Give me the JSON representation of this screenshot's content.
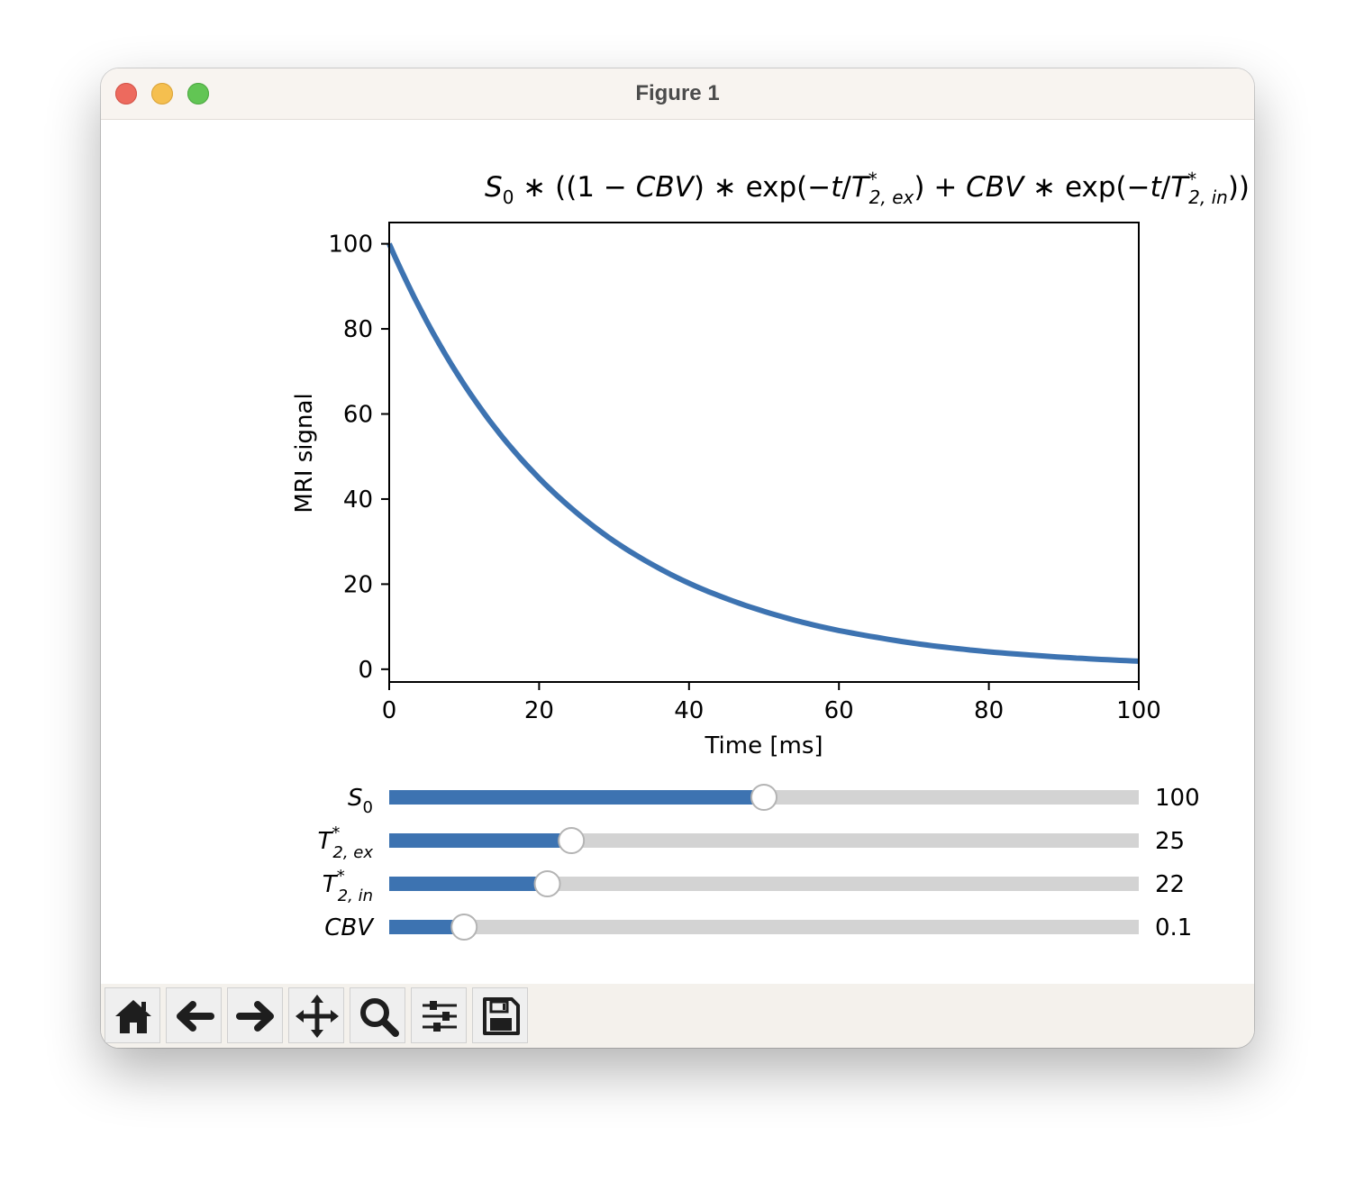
{
  "window": {
    "title": "Figure 1"
  },
  "plot": {
    "title_parts": [
      "S",
      "0",
      " ∗ ((1 − ",
      "CBV",
      ") ∗ exp(−",
      "t",
      "/",
      "T",
      "*",
      "2, ex",
      ") + ",
      "CBV",
      " ∗ exp(−",
      "t",
      "/",
      "T",
      "*",
      "2, in",
      "))"
    ],
    "xlabel": "Time [ms]",
    "ylabel": "MRI signal"
  },
  "chart_data": {
    "type": "line",
    "title": "S0 * ((1 - CBV) * exp(-t/T*2,ex) + CBV * exp(-t/T*2,in))",
    "xlabel": "Time [ms]",
    "ylabel": "MRI signal",
    "xlim": [
      0,
      100
    ],
    "ylim": [
      -3,
      105
    ],
    "xticks": [
      "0",
      "20",
      "40",
      "60",
      "80",
      "100"
    ],
    "yticks": [
      "0",
      "20",
      "40",
      "60",
      "80",
      "100"
    ],
    "x": [
      0,
      5,
      10,
      15,
      20,
      25,
      30,
      35,
      40,
      45,
      50,
      55,
      60,
      65,
      70,
      75,
      80,
      85,
      90,
      95,
      100
    ],
    "series": [
      {
        "values": [
          100.0,
          81.8,
          66.9,
          54.8,
          44.9,
          36.8,
          30.1,
          24.7,
          20.2,
          16.6,
          13.6,
          11.1,
          9.1,
          7.5,
          6.1,
          5.0,
          4.1,
          3.4,
          2.8,
          2.3,
          1.9
        ]
      }
    ],
    "grid": false,
    "line_color": "#3d73b1"
  },
  "sliders": [
    {
      "label": "S",
      "sub": "0",
      "sup": "",
      "value": "100",
      "fill_fraction": 0.5
    },
    {
      "label": "T",
      "sub": "2, ex",
      "sup": "*",
      "value": "25",
      "fill_fraction": 0.243
    },
    {
      "label": "T",
      "sub": "2, in",
      "sup": "*",
      "value": "22",
      "fill_fraction": 0.211
    },
    {
      "label": "CBV",
      "sub": "",
      "sup": "",
      "value": "0.1",
      "fill_fraction": 0.1
    }
  ],
  "colors": {
    "slider_fill": "#3d73b1",
    "slider_track": "#d3d3d3",
    "toolbar_bg": "#f4f1ec"
  },
  "toolbar": {
    "buttons": [
      {
        "icon": "home-icon"
      },
      {
        "icon": "back-arrow-icon"
      },
      {
        "icon": "forward-arrow-icon"
      },
      {
        "icon": "pan-move-icon"
      },
      {
        "icon": "zoom-magnifier-icon"
      },
      {
        "icon": "subplots-sliders-icon"
      },
      {
        "icon": "save-floppy-icon"
      }
    ]
  }
}
